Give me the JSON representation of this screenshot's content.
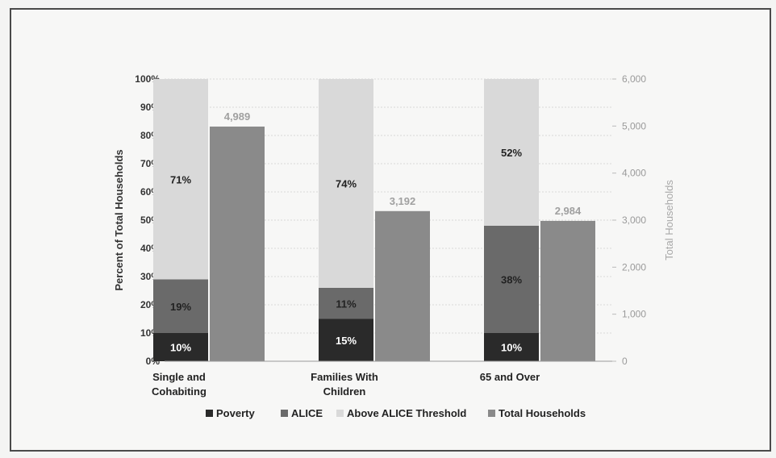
{
  "chart_data": {
    "type": "bar",
    "categories": [
      [
        "Single and",
        "Cohabiting"
      ],
      [
        "Families With",
        "Children"
      ],
      [
        "65 and Over"
      ]
    ],
    "stacked_series": [
      {
        "name": "Poverty",
        "values": [
          10,
          15,
          10
        ],
        "labels": [
          "10%",
          "15%",
          "10%"
        ],
        "color": "#2a2a2a",
        "label_color": "#ffffff"
      },
      {
        "name": "ALICE",
        "values": [
          19,
          11,
          38
        ],
        "labels": [
          "19%",
          "11%",
          "38%"
        ],
        "color": "#6a6a6a",
        "label_color": "#222222"
      },
      {
        "name": "Above ALICE Threshold",
        "values": [
          71,
          74,
          52
        ],
        "labels": [
          "71%",
          "74%",
          "52%"
        ],
        "color": "#d9d9d9",
        "label_color": "#222222"
      }
    ],
    "total_series": {
      "name": "Total Households",
      "values": [
        4989,
        3192,
        2984
      ],
      "labels": [
        "4,989",
        "3,192",
        "2,984"
      ],
      "color": "#8a8a8a"
    },
    "y_left": {
      "label": "Percent of Total Households",
      "ticks": [
        "0%",
        "10%",
        "20%",
        "30%",
        "40%",
        "50%",
        "60%",
        "70%",
        "80%",
        "90%",
        "100%"
      ],
      "ylim": [
        0,
        100
      ]
    },
    "y_right": {
      "label": "Total Households",
      "ticks": [
        "0",
        "1,000",
        "2,000",
        "3,000",
        "4,000",
        "5,000",
        "6,000"
      ],
      "ylim": [
        0,
        6000
      ]
    },
    "legend": [
      "Poverty",
      "ALICE",
      "Above ALICE Threshold",
      "Total Households"
    ],
    "legend_position": "bottom",
    "grid": true
  }
}
